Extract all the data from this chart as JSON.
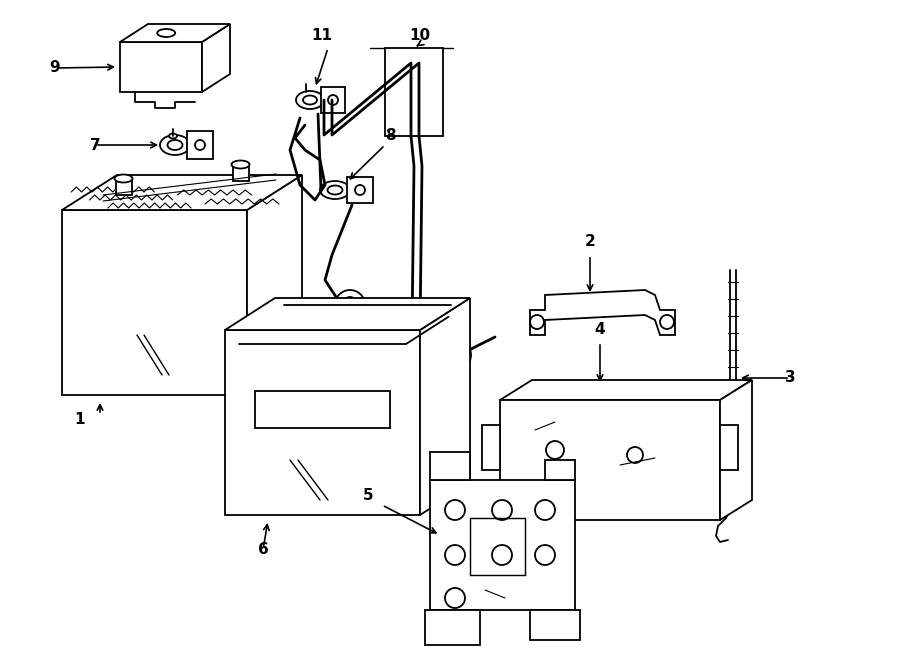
{
  "bg_color": "#ffffff",
  "line_color": "#000000",
  "lw": 1.3,
  "fig_width": 9.0,
  "fig_height": 6.61,
  "dpi": 100
}
